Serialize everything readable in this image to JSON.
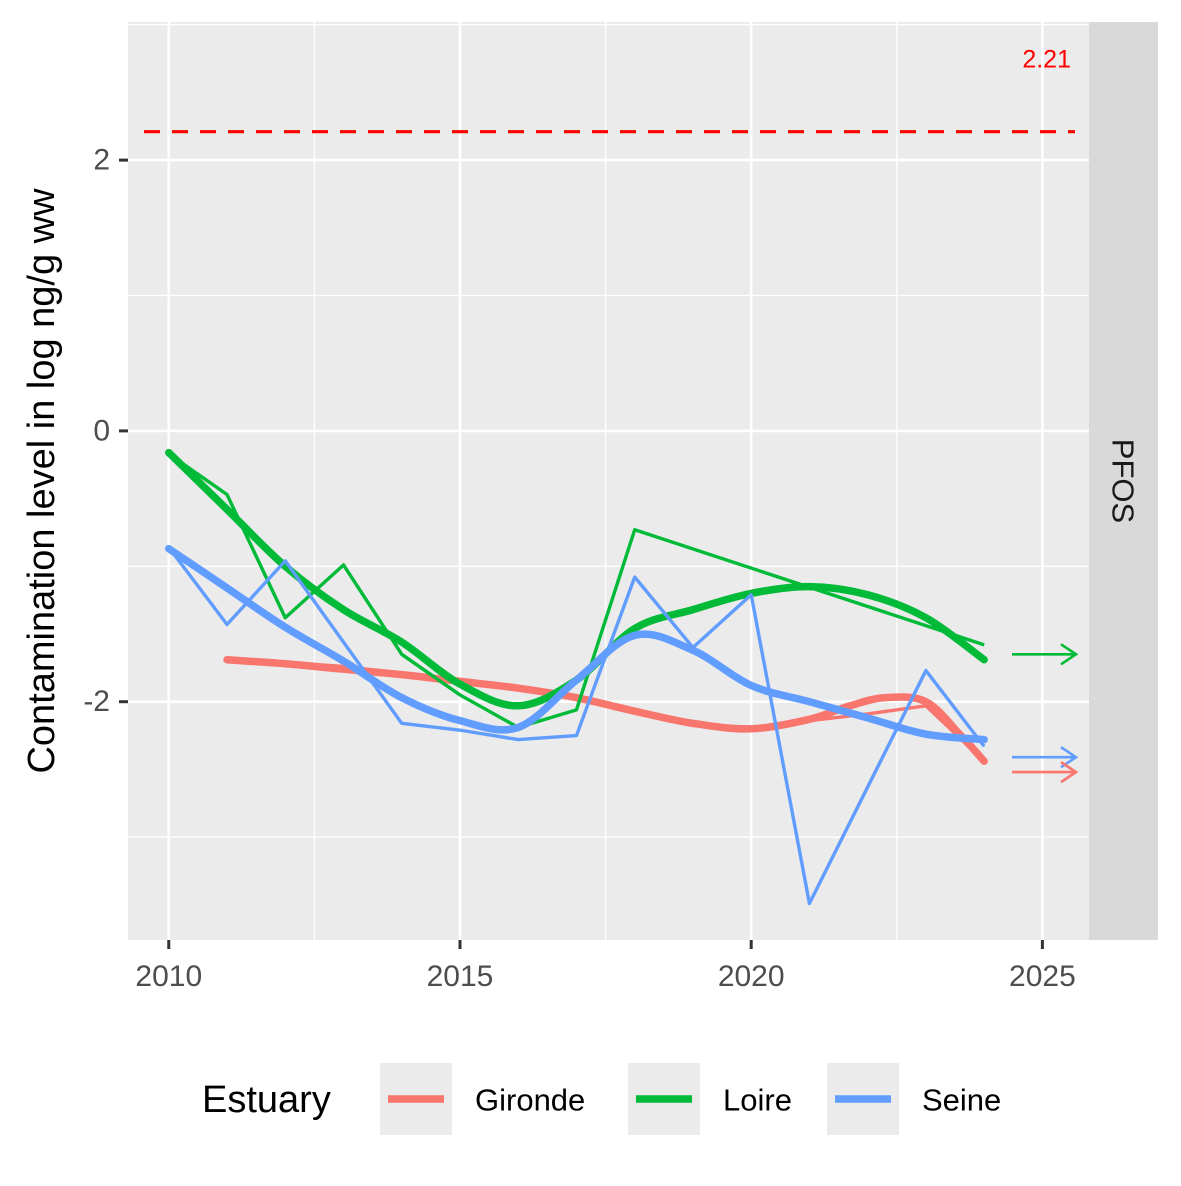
{
  "chart_data": {
    "type": "line",
    "title": "",
    "xlabel": "",
    "ylabel": "Contamination level in log ng/g ww",
    "facet_label": "PFOS",
    "xlim": [
      2009.3,
      2025.8
    ],
    "ylim": [
      -3.76,
      3.02
    ],
    "x_ticks": [
      2010,
      2015,
      2020,
      2025
    ],
    "x_tick_labels": [
      "2010",
      "2015",
      "2020",
      "2025"
    ],
    "y_ticks": [
      -2,
      0,
      2
    ],
    "y_tick_labels": [
      "-2",
      "0",
      "2"
    ],
    "grid": true,
    "threshold": {
      "value": 2.21,
      "label": "2.21",
      "color": "#ff0000",
      "style": "dashed"
    },
    "legend": {
      "title": "Estuary",
      "position": "bottom"
    },
    "series": [
      {
        "name": "Gironde",
        "color": "#f8766d",
        "x": [
          2011,
          2012,
          2013,
          2014,
          2015,
          2016,
          2017,
          2018,
          2019,
          2020,
          2021,
          2022,
          2023,
          2024
        ],
        "values": [
          -1.69,
          -1.71,
          -1.74,
          -1.79,
          -1.84,
          -1.89,
          -1.96,
          -2.07,
          -2.17,
          -2.21,
          -2.14,
          -2.09,
          -2.03,
          -2.44
        ],
        "smooth_x": [
          2011,
          2012,
          2013,
          2014,
          2015,
          2016,
          2017,
          2018,
          2019,
          2020,
          2021,
          2021.7,
          2022.3,
          2023,
          2023.6,
          2024
        ],
        "smooth_y": [
          -1.69,
          -1.72,
          -1.76,
          -1.8,
          -1.85,
          -1.9,
          -1.97,
          -2.07,
          -2.16,
          -2.2,
          -2.13,
          -2.03,
          -1.97,
          -2.0,
          -2.25,
          -2.44
        ]
      },
      {
        "name": "Loire",
        "color": "#00ba38",
        "x": [
          2010,
          2011,
          2012,
          2013,
          2014,
          2015,
          2016,
          2017,
          2018,
          2024
        ],
        "values": [
          -0.17,
          -0.47,
          -1.38,
          -0.99,
          -1.65,
          -1.95,
          -2.19,
          -2.06,
          -0.73,
          -1.58
        ],
        "smooth_x": [
          2010,
          2011,
          2012,
          2013,
          2014,
          2015,
          2016,
          2017,
          2018,
          2019,
          2020,
          2021,
          2022,
          2023,
          2024
        ],
        "smooth_y": [
          -0.16,
          -0.58,
          -1.0,
          -1.32,
          -1.56,
          -1.87,
          -2.03,
          -1.84,
          -1.46,
          -1.32,
          -1.2,
          -1.15,
          -1.21,
          -1.38,
          -1.69
        ]
      },
      {
        "name": "Seine",
        "color": "#619cff",
        "x": [
          2010,
          2011,
          2012,
          2013,
          2014,
          2015,
          2016,
          2017,
          2018,
          2019,
          2020,
          2021,
          2023,
          2024
        ],
        "values": [
          -0.86,
          -1.43,
          -0.96,
          -1.56,
          -2.16,
          -2.21,
          -2.28,
          -2.25,
          -1.08,
          -1.6,
          -1.21,
          -3.49,
          -1.77,
          -2.33
        ],
        "smooth_x": [
          2010,
          2011,
          2012,
          2013,
          2014,
          2015,
          2016,
          2017,
          2018,
          2019,
          2020,
          2021,
          2022,
          2023,
          2024
        ],
        "smooth_y": [
          -0.87,
          -1.16,
          -1.45,
          -1.7,
          -1.97,
          -2.14,
          -2.19,
          -1.84,
          -1.51,
          -1.62,
          -1.88,
          -2.0,
          -2.12,
          -2.24,
          -2.28
        ]
      }
    ],
    "projection_arrows": [
      {
        "series": "Loire",
        "y": -1.65,
        "color": "#00ba38"
      },
      {
        "series": "Seine",
        "y": -2.41,
        "color": "#619cff"
      },
      {
        "series": "Gironde",
        "y": -2.52,
        "color": "#f8766d"
      }
    ]
  }
}
